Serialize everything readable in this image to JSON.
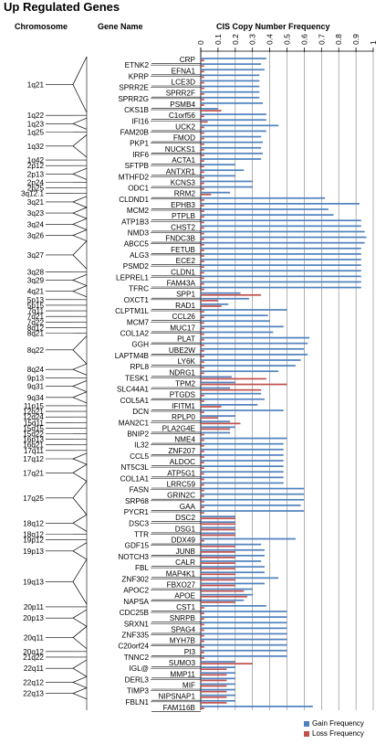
{
  "title": "Up Regulated Genes",
  "headers": {
    "chromosome": "Chromosome",
    "gene_name": "Gene Name",
    "frequency": "CIS Copy Number Frequency"
  },
  "chart_data": {
    "type": "bar",
    "orientation": "horizontal",
    "title": "CIS Copy Number Frequency",
    "xlim": [
      0,
      1
    ],
    "ticks": [
      0,
      0.1,
      0.2,
      0.3,
      0.4,
      0.5,
      0.6,
      0.7,
      0.8,
      0.9,
      1
    ],
    "tick_labels": [
      "0",
      "0.1",
      "0.2",
      "0.3",
      "0.4",
      "0.5",
      "0.6",
      "0.7",
      "0.8",
      "0.9",
      "1"
    ],
    "grid": true,
    "legend_position": "bottom-right",
    "series_colors": {
      "gain": "#4f81bd",
      "loss": "#c0504d"
    },
    "legend": [
      {
        "name": "Gain Frequency",
        "color": "#4f81bd"
      },
      {
        "name": "Loss Frequency",
        "color": "#c0504d"
      }
    ],
    "genes": [
      {
        "name": "CRP",
        "gain": 0.38,
        "loss": 0.02
      },
      {
        "name": "ETNK2",
        "gain": 0.35,
        "loss": 0.02
      },
      {
        "name": "EFNA1",
        "gain": 0.37,
        "loss": 0.02
      },
      {
        "name": "KPRP",
        "gain": 0.34,
        "loss": 0.02
      },
      {
        "name": "LCE3D",
        "gain": 0.34,
        "loss": 0.02
      },
      {
        "name": "SPRR2E",
        "gain": 0.34,
        "loss": 0.02
      },
      {
        "name": "SPRR2F",
        "gain": 0.34,
        "loss": 0.02
      },
      {
        "name": "SPRR2G",
        "gain": 0.34,
        "loss": 0.02
      },
      {
        "name": "PSMB4",
        "gain": 0.36,
        "loss": 0.02
      },
      {
        "name": "CKS1B",
        "gain": 0.1,
        "loss": 0.12
      },
      {
        "name": "C1orf56",
        "gain": 0.38,
        "loss": 0.02
      },
      {
        "name": "IFI16",
        "gain": 0.38,
        "loss": 0.04
      },
      {
        "name": "UCK2",
        "gain": 0.45,
        "loss": 0.02
      },
      {
        "name": "FAM20B",
        "gain": 0.38,
        "loss": 0.02
      },
      {
        "name": "FMOD",
        "gain": 0.35,
        "loss": 0.02
      },
      {
        "name": "PKP1",
        "gain": 0.36,
        "loss": 0.02
      },
      {
        "name": "NUCKS1",
        "gain": 0.35,
        "loss": 0.02
      },
      {
        "name": "IRF6",
        "gain": 0.36,
        "loss": 0.02
      },
      {
        "name": "ACTA1",
        "gain": 0.35,
        "loss": 0.02
      },
      {
        "name": "SFTPB",
        "gain": 0.2,
        "loss": 0.02
      },
      {
        "name": "ANTXR1",
        "gain": 0.25,
        "loss": 0.02
      },
      {
        "name": "MTHFD2",
        "gain": 0.2,
        "loss": 0.02
      },
      {
        "name": "KCNS3",
        "gain": 0.3,
        "loss": 0.02
      },
      {
        "name": "ODC1",
        "gain": 0.3,
        "loss": 0.02
      },
      {
        "name": "RRM2",
        "gain": 0.17,
        "loss": 0.06
      },
      {
        "name": "CLDND1",
        "gain": 0.72,
        "loss": 0.02
      },
      {
        "name": "EPHB3",
        "gain": 0.92,
        "loss": 0.02
      },
      {
        "name": "MCM2",
        "gain": 0.74,
        "loss": 0.02
      },
      {
        "name": "PTPLB",
        "gain": 0.77,
        "loss": 0.02
      },
      {
        "name": "ATP1B3",
        "gain": 0.93,
        "loss": 0.02
      },
      {
        "name": "CHST2",
        "gain": 0.93,
        "loss": 0.02
      },
      {
        "name": "NMD3",
        "gain": 0.95,
        "loss": 0.02
      },
      {
        "name": "FNDC3B",
        "gain": 0.96,
        "loss": 0.02
      },
      {
        "name": "ABCC5",
        "gain": 0.95,
        "loss": 0.02
      },
      {
        "name": "FETUB",
        "gain": 0.93,
        "loss": 0.02
      },
      {
        "name": "ALG3",
        "gain": 0.93,
        "loss": 0.02
      },
      {
        "name": "ECE2",
        "gain": 0.93,
        "loss": 0.02
      },
      {
        "name": "PSMD2",
        "gain": 0.93,
        "loss": 0.02
      },
      {
        "name": "CLDN1",
        "gain": 0.93,
        "loss": 0.02
      },
      {
        "name": "LEPREL1",
        "gain": 0.93,
        "loss": 0.02
      },
      {
        "name": "FAM43A",
        "gain": 0.93,
        "loss": 0.02
      },
      {
        "name": "TFRC",
        "gain": 0.93,
        "loss": 0.02
      },
      {
        "name": "SPP1",
        "gain": 0.23,
        "loss": 0.35
      },
      {
        "name": "OXCT1",
        "gain": 0.28,
        "loss": 0.1
      },
      {
        "name": "RAD1",
        "gain": 0.16,
        "loss": 0.12
      },
      {
        "name": "CLPTM1L",
        "gain": 0.5,
        "loss": 0.02
      },
      {
        "name": "CCL26",
        "gain": 0.39,
        "loss": 0.02
      },
      {
        "name": "MCM7",
        "gain": 0.4,
        "loss": 0.02
      },
      {
        "name": "MUC17",
        "gain": 0.48,
        "loss": 0.02
      },
      {
        "name": "COL1A2",
        "gain": 0.42,
        "loss": 0.02
      },
      {
        "name": "PLAT",
        "gain": 0.63,
        "loss": 0.02
      },
      {
        "name": "GGH",
        "gain": 0.62,
        "loss": 0.02
      },
      {
        "name": "UBE2W",
        "gain": 0.6,
        "loss": 0.02
      },
      {
        "name": "LAPTM4B",
        "gain": 0.62,
        "loss": 0.02
      },
      {
        "name": "LY6K",
        "gain": 0.58,
        "loss": 0.02
      },
      {
        "name": "RPL8",
        "gain": 0.55,
        "loss": 0.02
      },
      {
        "name": "NDRG1",
        "gain": 0.45,
        "loss": 0.02
      },
      {
        "name": "TESK1",
        "gain": 0.18,
        "loss": 0.38
      },
      {
        "name": "TPM2",
        "gain": 0.2,
        "loss": 0.5
      },
      {
        "name": "SLC44A1",
        "gain": 0.17,
        "loss": 0.35
      },
      {
        "name": "PTGDS",
        "gain": 0.35,
        "loss": 0.02
      },
      {
        "name": "COL5A1",
        "gain": 0.37,
        "loss": 0.02
      },
      {
        "name": "IFITM1",
        "gain": 0.33,
        "loss": 0.12
      },
      {
        "name": "DCN",
        "gain": 0.48,
        "loss": 0.02
      },
      {
        "name": "RPLP0",
        "gain": 0.2,
        "loss": 0.1
      },
      {
        "name": "MAN2C1",
        "gain": 0.17,
        "loss": 0.23
      },
      {
        "name": "PLA2G4E",
        "gain": 0.2,
        "loss": 0.17
      },
      {
        "name": "BNIP2",
        "gain": 0.17,
        "loss": 0.02
      },
      {
        "name": "NME4",
        "gain": 0.5,
        "loss": 0.02
      },
      {
        "name": "IL32",
        "gain": 0.48,
        "loss": 0.02
      },
      {
        "name": "ZNF207",
        "gain": 0.48,
        "loss": 0.02
      },
      {
        "name": "CCL5",
        "gain": 0.48,
        "loss": 0.02
      },
      {
        "name": "ALDOC",
        "gain": 0.48,
        "loss": 0.02
      },
      {
        "name": "NT5C3L",
        "gain": 0.48,
        "loss": 0.02
      },
      {
        "name": "ATP5G1",
        "gain": 0.48,
        "loss": 0.02
      },
      {
        "name": "COL1A1",
        "gain": 0.48,
        "loss": 0.02
      },
      {
        "name": "LRRC59",
        "gain": 0.48,
        "loss": 0.02
      },
      {
        "name": "FASN",
        "gain": 0.6,
        "loss": 0.02
      },
      {
        "name": "GRIN2C",
        "gain": 0.6,
        "loss": 0.02
      },
      {
        "name": "SRP68",
        "gain": 0.6,
        "loss": 0.02
      },
      {
        "name": "GAA",
        "gain": 0.58,
        "loss": 0.02
      },
      {
        "name": "PYCR1",
        "gain": 0.6,
        "loss": 0.02
      },
      {
        "name": "DSC2",
        "gain": 0.2,
        "loss": 0.2
      },
      {
        "name": "DSC3",
        "gain": 0.2,
        "loss": 0.2
      },
      {
        "name": "DSG1",
        "gain": 0.2,
        "loss": 0.2
      },
      {
        "name": "TTR",
        "gain": 0.2,
        "loss": 0.2
      },
      {
        "name": "DDX49",
        "gain": 0.55,
        "loss": 0.02
      },
      {
        "name": "GDF15",
        "gain": 0.35,
        "loss": 0.2
      },
      {
        "name": "JUNB",
        "gain": 0.37,
        "loss": 0.2
      },
      {
        "name": "NOTCH3",
        "gain": 0.37,
        "loss": 0.2
      },
      {
        "name": "CALR",
        "gain": 0.35,
        "loss": 0.2
      },
      {
        "name": "FBL",
        "gain": 0.37,
        "loss": 0.2
      },
      {
        "name": "MAP4K1",
        "gain": 0.37,
        "loss": 0.2
      },
      {
        "name": "ZNF302",
        "gain": 0.45,
        "loss": 0.2
      },
      {
        "name": "FBXO27",
        "gain": 0.37,
        "loss": 0.2
      },
      {
        "name": "APOC2",
        "gain": 0.3,
        "loss": 0.25
      },
      {
        "name": "APOE",
        "gain": 0.3,
        "loss": 0.27
      },
      {
        "name": "NAPSA",
        "gain": 0.25,
        "loss": 0.2
      },
      {
        "name": "CST1",
        "gain": 0.38,
        "loss": 0.02
      },
      {
        "name": "CDC25B",
        "gain": 0.5,
        "loss": 0.02
      },
      {
        "name": "SNRPB",
        "gain": 0.5,
        "loss": 0.02
      },
      {
        "name": "SRXN1",
        "gain": 0.5,
        "loss": 0.02
      },
      {
        "name": "SPAG4",
        "gain": 0.5,
        "loss": 0.02
      },
      {
        "name": "ZNF335",
        "gain": 0.5,
        "loss": 0.02
      },
      {
        "name": "MYH7B",
        "gain": 0.5,
        "loss": 0.02
      },
      {
        "name": "C20orf24",
        "gain": 0.5,
        "loss": 0.02
      },
      {
        "name": "PI3",
        "gain": 0.5,
        "loss": 0.02
      },
      {
        "name": "TNNC2",
        "gain": 0.5,
        "loss": 0.02
      },
      {
        "name": "SUMO3",
        "gain": 0.2,
        "loss": 0.3
      },
      {
        "name": "IGL@",
        "gain": 0.2,
        "loss": 0.15
      },
      {
        "name": "MMP11",
        "gain": 0.2,
        "loss": 0.15
      },
      {
        "name": "DERL3",
        "gain": 0.2,
        "loss": 0.15
      },
      {
        "name": "MIF",
        "gain": 0.2,
        "loss": 0.15
      },
      {
        "name": "TIMP3",
        "gain": 0.2,
        "loss": 0.15
      },
      {
        "name": "NIPSNAP1",
        "gain": 0.2,
        "loss": 0.15
      },
      {
        "name": "FBLN1",
        "gain": 0.2,
        "loss": 0.15
      },
      {
        "name": "FAM116B",
        "gain": 0.65,
        "loss": 0.02
      }
    ],
    "chromosome_bands": [
      {
        "label": "1q21",
        "start": 0,
        "end": 9
      },
      {
        "label": "1q22",
        "start": 10,
        "end": 10
      },
      {
        "label": "1q23",
        "start": 11,
        "end": 12
      },
      {
        "label": "1q25",
        "start": 13,
        "end": 13
      },
      {
        "label": "1q32",
        "start": 14,
        "end": 17
      },
      {
        "label": "1q42",
        "start": 18,
        "end": 18
      },
      {
        "label": "2p12",
        "start": 19,
        "end": 19
      },
      {
        "label": "2p13",
        "start": 20,
        "end": 21
      },
      {
        "label": "2p24",
        "start": 22,
        "end": 22
      },
      {
        "label": "2p25",
        "start": 23,
        "end": 23
      },
      {
        "label": "3q12.1",
        "start": 24,
        "end": 24
      },
      {
        "label": "3q21",
        "start": 25,
        "end": 26
      },
      {
        "label": "3q23",
        "start": 27,
        "end": 28
      },
      {
        "label": "3q24",
        "start": 29,
        "end": 30
      },
      {
        "label": "3q26",
        "start": 31,
        "end": 32
      },
      {
        "label": "3q27",
        "start": 33,
        "end": 37
      },
      {
        "label": "3q28",
        "start": 38,
        "end": 38
      },
      {
        "label": "3q29",
        "start": 39,
        "end": 40
      },
      {
        "label": "4q21",
        "start": 41,
        "end": 42
      },
      {
        "label": "5p13",
        "start": 43,
        "end": 43
      },
      {
        "label": "5p15",
        "start": 44,
        "end": 44
      },
      {
        "label": "7q11",
        "start": 45,
        "end": 45
      },
      {
        "label": "7q21",
        "start": 46,
        "end": 46
      },
      {
        "label": "7q22",
        "start": 47,
        "end": 47
      },
      {
        "label": "8q12",
        "start": 48,
        "end": 48
      },
      {
        "label": "8q21",
        "start": 49,
        "end": 49
      },
      {
        "label": "8q22",
        "start": 50,
        "end": 54
      },
      {
        "label": "8q24",
        "start": 55,
        "end": 56
      },
      {
        "label": "9p13",
        "start": 57,
        "end": 57
      },
      {
        "label": "9q31",
        "start": 58,
        "end": 59
      },
      {
        "label": "9q34",
        "start": 60,
        "end": 61
      },
      {
        "label": "11p15",
        "start": 62,
        "end": 62
      },
      {
        "label": "12q21",
        "start": 63,
        "end": 63
      },
      {
        "label": "12q24",
        "start": 64,
        "end": 64
      },
      {
        "label": "15q11",
        "start": 65,
        "end": 65
      },
      {
        "label": "15q15",
        "start": 66,
        "end": 66
      },
      {
        "label": "15q22",
        "start": 67,
        "end": 67
      },
      {
        "label": "16p13",
        "start": 68,
        "end": 68
      },
      {
        "label": "16q21",
        "start": 69,
        "end": 69
      },
      {
        "label": "17q11",
        "start": 70,
        "end": 70
      },
      {
        "label": "17q12",
        "start": 71,
        "end": 72
      },
      {
        "label": "17q21",
        "start": 73,
        "end": 75
      },
      {
        "label": "17q25",
        "start": 76,
        "end": 81
      },
      {
        "label": "18q12",
        "start": 82,
        "end": 84
      },
      {
        "label": "18q12",
        "start": 85,
        "end": 85
      },
      {
        "label": "19p12",
        "start": 86,
        "end": 86
      },
      {
        "label": "19p13",
        "start": 87,
        "end": 89
      },
      {
        "label": "19q13",
        "start": 90,
        "end": 97
      },
      {
        "label": "20p11",
        "start": 98,
        "end": 98
      },
      {
        "label": "20p13",
        "start": 99,
        "end": 101
      },
      {
        "label": "20q11",
        "start": 102,
        "end": 105
      },
      {
        "label": "20q12",
        "start": 106,
        "end": 106
      },
      {
        "label": "21q22",
        "start": 107,
        "end": 107
      },
      {
        "label": "22q11",
        "start": 108,
        "end": 110
      },
      {
        "label": "22q12",
        "start": 111,
        "end": 112
      },
      {
        "label": "22q13",
        "start": 113,
        "end": 114
      }
    ]
  }
}
